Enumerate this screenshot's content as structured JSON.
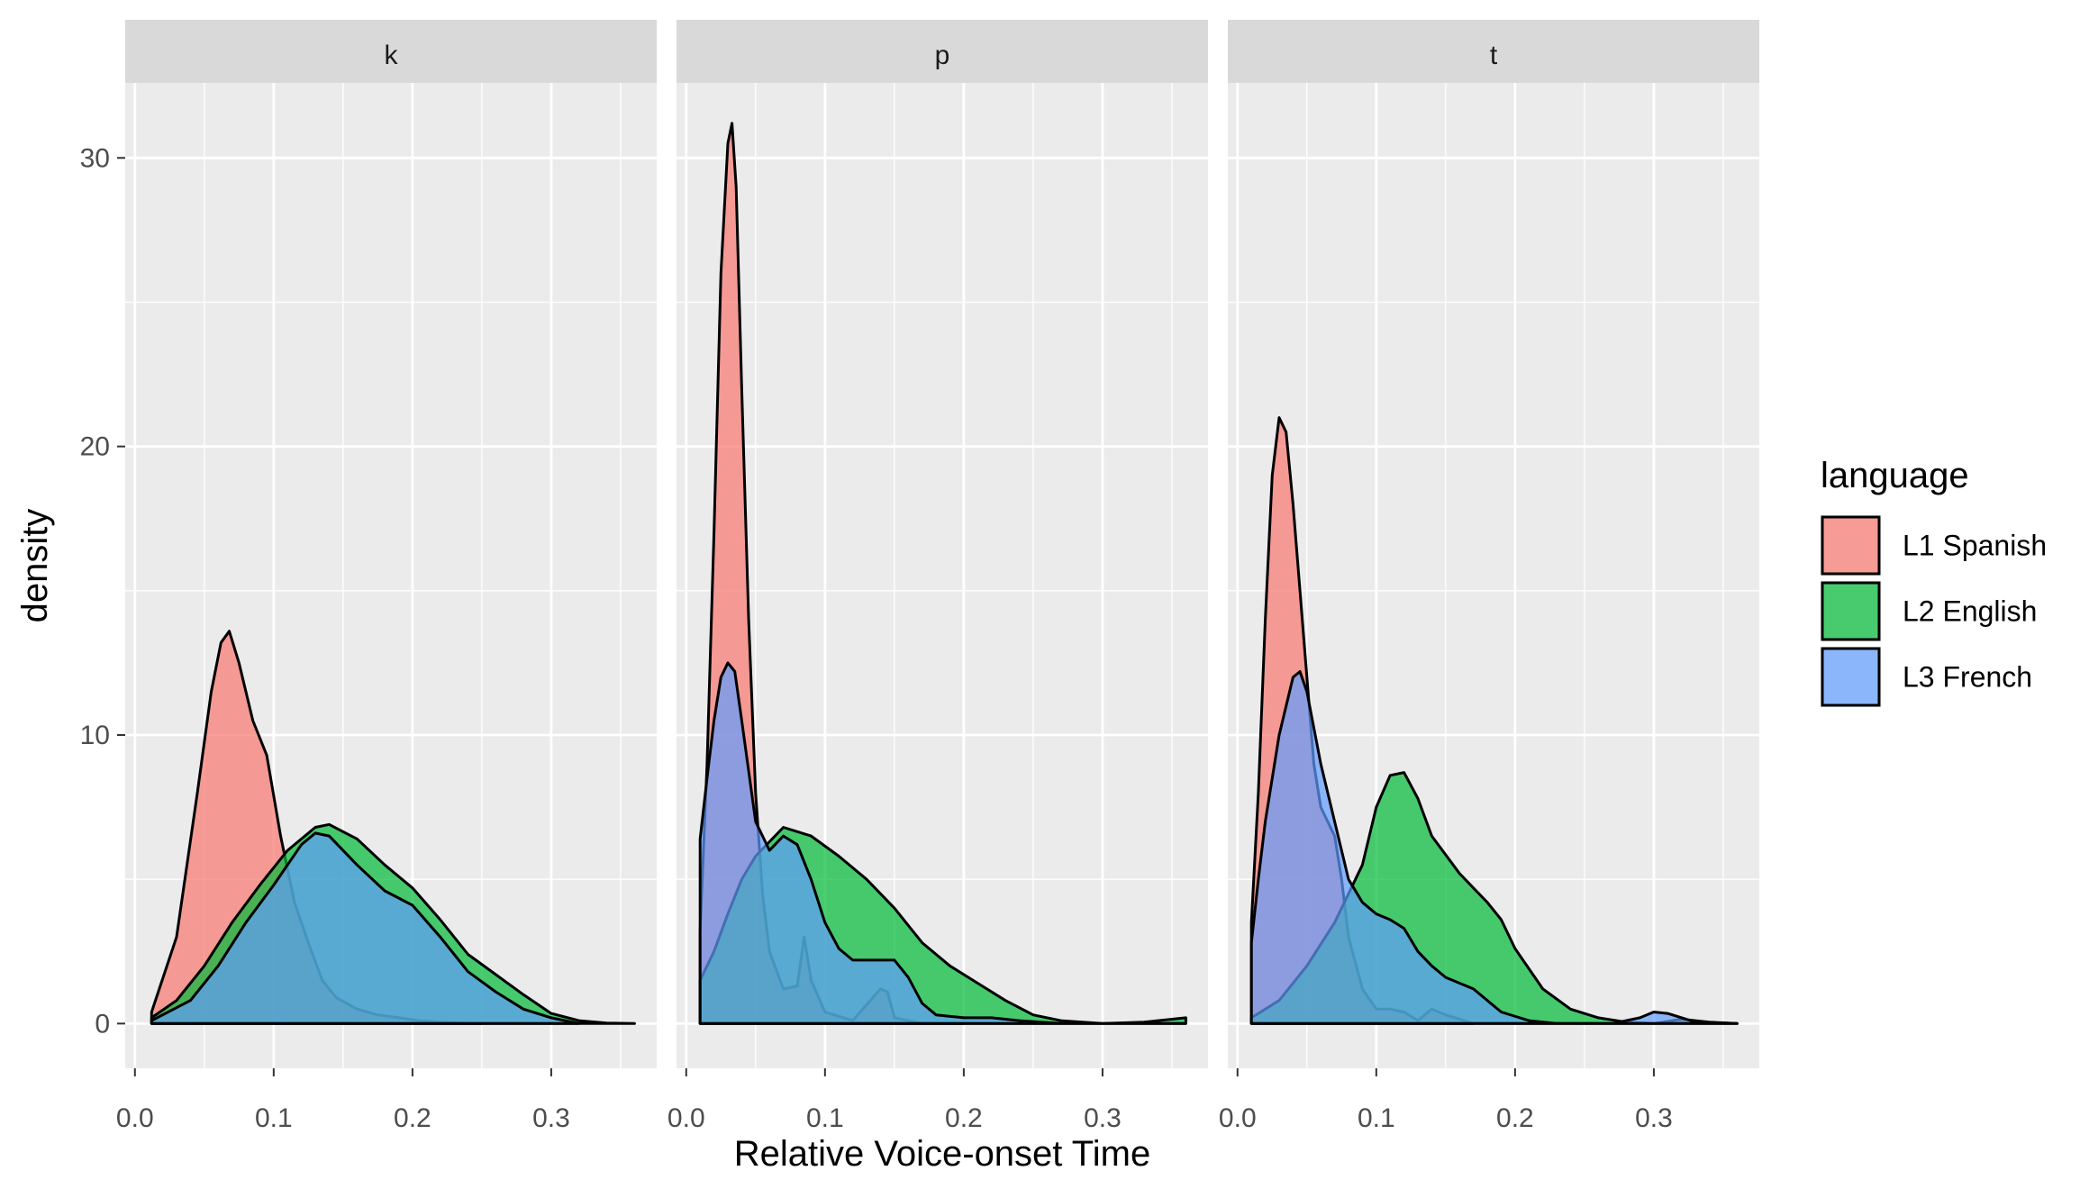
{
  "chart_data": {
    "type": "area",
    "subtype": "density",
    "title": "",
    "xlabel": "Relative Voice-onset Time",
    "ylabel": "density",
    "xlim": [
      -0.007,
      0.376
    ],
    "ylim": [
      -1.55,
      32.6
    ],
    "x_ticks": [
      0.0,
      0.1,
      0.2,
      0.3
    ],
    "x_tick_labels": [
      "0.0",
      "0.1",
      "0.2",
      "0.3"
    ],
    "y_ticks": [
      0,
      10,
      20,
      30
    ],
    "y_tick_labels": [
      "0",
      "10",
      "20",
      "30"
    ],
    "grid": true,
    "fill_alpha": 0.7,
    "legend": {
      "title": "language",
      "position": "right",
      "entries": [
        {
          "label": "L1 Spanish",
          "color": "#F8766D"
        },
        {
          "label": "L2 English",
          "color": "#00BA38"
        },
        {
          "label": "L3 French",
          "color": "#619CFF"
        }
      ]
    },
    "colors": {
      "L1 Spanish": "#F8766D",
      "L2 English": "#00BA38",
      "L3 French": "#619CFF",
      "panel_background": "#EBEBEB",
      "strip_background": "#D9D9D9",
      "grid": "#FFFFFF",
      "outline": "#000000"
    },
    "facets": [
      {
        "label": "k",
        "series": [
          {
            "name": "L1 Spanish",
            "x": [
              0.012,
              0.03,
              0.045,
              0.055,
              0.062,
              0.068,
              0.075,
              0.085,
              0.095,
              0.105,
              0.115,
              0.125,
              0.135,
              0.145,
              0.16,
              0.175,
              0.19,
              0.205,
              0.22,
              0.235,
              0.25
            ],
            "y": [
              0.4,
              3,
              8,
              11.5,
              13.2,
              13.6,
              12.5,
              10.5,
              9.3,
              6.5,
              4.2,
              2.8,
              1.5,
              0.9,
              0.5,
              0.3,
              0.2,
              0.1,
              0.05,
              0.02,
              0
            ]
          },
          {
            "name": "L2 English",
            "x": [
              0.012,
              0.03,
              0.05,
              0.07,
              0.09,
              0.11,
              0.13,
              0.14,
              0.16,
              0.18,
              0.2,
              0.22,
              0.24,
              0.26,
              0.28,
              0.3,
              0.32,
              0.34,
              0.36
            ],
            "y": [
              0.2,
              0.8,
              2,
              3.5,
              4.8,
              6,
              6.8,
              6.9,
              6.4,
              5.5,
              4.7,
              3.6,
              2.4,
              1.7,
              1,
              0.35,
              0.1,
              0.02,
              0
            ]
          },
          {
            "name": "L3 French",
            "x": [
              0.012,
              0.04,
              0.06,
              0.08,
              0.1,
              0.12,
              0.13,
              0.14,
              0.16,
              0.18,
              0.2,
              0.22,
              0.24,
              0.26,
              0.28,
              0.3,
              0.32
            ],
            "y": [
              0.1,
              0.8,
              2,
              3.5,
              4.8,
              6.2,
              6.6,
              6.5,
              5.5,
              4.6,
              4.1,
              3,
              1.8,
              1.1,
              0.5,
              0.2,
              0
            ]
          }
        ]
      },
      {
        "label": "p",
        "series": [
          {
            "name": "L1 Spanish",
            "x": [
              0.01,
              0.015,
              0.02,
              0.025,
              0.03,
              0.033,
              0.036,
              0.04,
              0.045,
              0.05,
              0.055,
              0.06,
              0.07,
              0.08,
              0.085,
              0.09,
              0.1,
              0.12,
              0.14,
              0.145,
              0.15,
              0.17,
              0.2
            ],
            "y": [
              3.2,
              9,
              17,
              26,
              30.5,
              31.2,
              29,
              22,
              14,
              8,
              4.5,
              2.5,
              1.2,
              1.3,
              3,
              1.5,
              0.4,
              0.1,
              1.2,
              1.1,
              0.2,
              0,
              0
            ]
          },
          {
            "name": "L2 English",
            "x": [
              0.01,
              0.02,
              0.03,
              0.04,
              0.05,
              0.06,
              0.07,
              0.09,
              0.11,
              0.13,
              0.15,
              0.17,
              0.19,
              0.21,
              0.23,
              0.25,
              0.27,
              0.3,
              0.33,
              0.36
            ],
            "y": [
              1.5,
              2.5,
              3.8,
              5,
              5.8,
              6.3,
              6.8,
              6.5,
              5.8,
              5,
              4,
              2.8,
              2,
              1.4,
              0.8,
              0.3,
              0.1,
              0,
              0.05,
              0.2
            ]
          },
          {
            "name": "L3 French",
            "x": [
              0.01,
              0.015,
              0.02,
              0.025,
              0.03,
              0.035,
              0.04,
              0.05,
              0.06,
              0.07,
              0.08,
              0.09,
              0.1,
              0.11,
              0.12,
              0.13,
              0.15,
              0.16,
              0.17,
              0.18,
              0.2,
              0.22,
              0.24,
              0.27,
              0.3,
              0.33,
              0.36
            ],
            "y": [
              6.4,
              8.5,
              10.5,
              12,
              12.5,
              12.2,
              10.5,
              7,
              6,
              6.5,
              6.2,
              5,
              3.5,
              2.6,
              2.2,
              2.2,
              2.2,
              1.6,
              0.7,
              0.3,
              0.2,
              0.2,
              0.1,
              0,
              0,
              0,
              0
            ]
          }
        ]
      },
      {
        "label": "t",
        "series": [
          {
            "name": "L1 Spanish",
            "x": [
              0.01,
              0.015,
              0.02,
              0.025,
              0.03,
              0.035,
              0.04,
              0.05,
              0.055,
              0.06,
              0.065,
              0.07,
              0.075,
              0.08,
              0.09,
              0.1,
              0.11,
              0.12,
              0.13,
              0.14,
              0.15,
              0.17
            ],
            "y": [
              3.5,
              8,
              14,
              19,
              21,
              20.5,
              18,
              12,
              9,
              7.5,
              7,
              6.5,
              5,
              3,
              1.2,
              0.5,
              0.5,
              0.4,
              0.1,
              0.5,
              0.3,
              0
            ]
          },
          {
            "name": "L2 English",
            "x": [
              0.01,
              0.03,
              0.05,
              0.07,
              0.09,
              0.1,
              0.11,
              0.12,
              0.13,
              0.14,
              0.16,
              0.18,
              0.19,
              0.2,
              0.22,
              0.24,
              0.26,
              0.28,
              0.3,
              0.32,
              0.34,
              0.36
            ],
            "y": [
              0.2,
              0.8,
              2,
              3.5,
              5.5,
              7.5,
              8.6,
              8.7,
              7.8,
              6.5,
              5.2,
              4.2,
              3.6,
              2.6,
              1.2,
              0.5,
              0.2,
              0.05,
              0,
              0.15,
              0.05,
              0
            ]
          },
          {
            "name": "L3 French",
            "x": [
              0.01,
              0.015,
              0.02,
              0.03,
              0.04,
              0.045,
              0.05,
              0.06,
              0.07,
              0.08,
              0.09,
              0.1,
              0.11,
              0.12,
              0.13,
              0.14,
              0.15,
              0.17,
              0.19,
              0.21,
              0.23,
              0.25,
              0.27,
              0.29,
              0.3,
              0.31,
              0.33,
              0.36
            ],
            "y": [
              2.8,
              5,
              7,
              10,
              12,
              12.2,
              11.5,
              9,
              7,
              5,
              4.2,
              3.8,
              3.6,
              3.3,
              2.5,
              2,
              1.6,
              1.2,
              0.4,
              0.1,
              0,
              0,
              0,
              0.2,
              0.4,
              0.35,
              0.05,
              0
            ]
          }
        ]
      }
    ]
  }
}
